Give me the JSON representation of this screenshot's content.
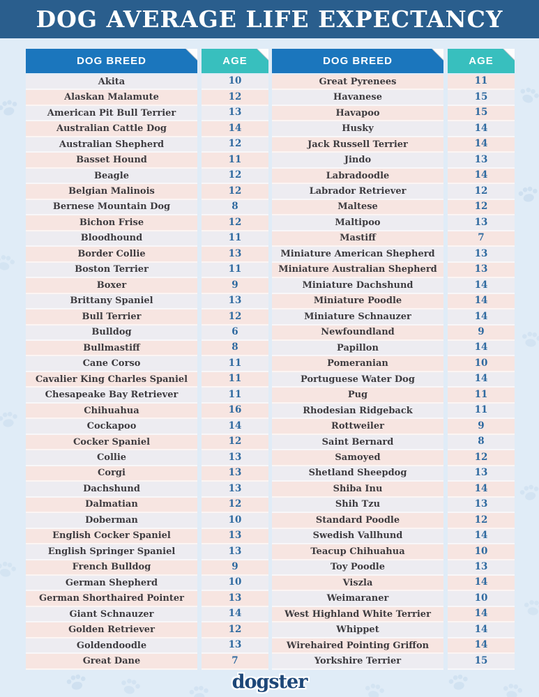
{
  "title": "DOG AVERAGE LIFE EXPECTANCY",
  "logo": "dogster",
  "columns": {
    "breed": "DOG BREED",
    "age": "AGE"
  },
  "colors": {
    "title_bar": "#2A5E8D",
    "breed_header": "#1B76BD",
    "age_header": "#38BFBE",
    "row_gray": "#EDECF1",
    "row_pink": "#F7E5E1",
    "breed_text": "#3E3C40",
    "age_text": "#2F6AA0",
    "background": "#E0ECF7",
    "paw_watermark": "#CBDEEF",
    "logo_text": "#1D4778"
  },
  "icons": {
    "watermark": "paw-print-icon"
  },
  "chart_data": {
    "type": "table",
    "title": "DOG AVERAGE LIFE EXPECTANCY",
    "columns": [
      "DOG BREED",
      "AGE"
    ],
    "tables": [
      {
        "rows": [
          [
            "Akita",
            10
          ],
          [
            "Alaskan Malamute",
            12
          ],
          [
            "American Pit Bull Terrier",
            13
          ],
          [
            "Australian Cattle Dog",
            14
          ],
          [
            "Australian Shepherd",
            12
          ],
          [
            "Basset Hound",
            11
          ],
          [
            "Beagle",
            12
          ],
          [
            "Belgian Malinois",
            12
          ],
          [
            "Bernese Mountain Dog",
            8
          ],
          [
            "Bichon Frise",
            12
          ],
          [
            "Bloodhound",
            11
          ],
          [
            "Border Collie",
            13
          ],
          [
            "Boston Terrier",
            11
          ],
          [
            "Boxer",
            9
          ],
          [
            "Brittany Spaniel",
            13
          ],
          [
            "Bull Terrier",
            12
          ],
          [
            "Bulldog",
            6
          ],
          [
            "Bullmastiff",
            8
          ],
          [
            "Cane Corso",
            11
          ],
          [
            "Cavalier King Charles Spaniel",
            11
          ],
          [
            "Chesapeake Bay Retriever",
            11
          ],
          [
            "Chihuahua",
            16
          ],
          [
            "Cockapoo",
            14
          ],
          [
            "Cocker Spaniel",
            12
          ],
          [
            "Collie",
            13
          ],
          [
            "Corgi",
            13
          ],
          [
            "Dachshund",
            13
          ],
          [
            "Dalmatian",
            12
          ],
          [
            "Doberman",
            10
          ],
          [
            "English Cocker Spaniel",
            13
          ],
          [
            "English Springer Spaniel",
            13
          ],
          [
            "French Bulldog",
            9
          ],
          [
            "German Shepherd",
            10
          ],
          [
            "German Shorthaired Pointer",
            13
          ],
          [
            "Giant Schnauzer",
            14
          ],
          [
            "Golden Retriever",
            12
          ],
          [
            "Goldendoodle",
            13
          ],
          [
            "Great Dane",
            7
          ]
        ]
      },
      {
        "rows": [
          [
            "Great Pyrenees",
            11
          ],
          [
            "Havanese",
            15
          ],
          [
            "Havapoo",
            15
          ],
          [
            "Husky",
            14
          ],
          [
            "Jack Russell Terrier",
            14
          ],
          [
            "Jindo",
            13
          ],
          [
            "Labradoodle",
            14
          ],
          [
            "Labrador Retriever",
            12
          ],
          [
            "Maltese",
            12
          ],
          [
            "Maltipoo",
            13
          ],
          [
            "Mastiff",
            7
          ],
          [
            "Miniature American Shepherd",
            13
          ],
          [
            "Miniature Australian Shepherd",
            13
          ],
          [
            "Miniature Dachshund",
            14
          ],
          [
            "Miniature Poodle",
            14
          ],
          [
            "Miniature Schnauzer",
            14
          ],
          [
            "Newfoundland",
            9
          ],
          [
            "Papillon",
            14
          ],
          [
            "Pomeranian",
            10
          ],
          [
            "Portuguese Water Dog",
            14
          ],
          [
            "Pug",
            11
          ],
          [
            "Rhodesian Ridgeback",
            11
          ],
          [
            "Rottweiler",
            9
          ],
          [
            "Saint Bernard",
            8
          ],
          [
            "Samoyed",
            12
          ],
          [
            "Shetland Sheepdog",
            13
          ],
          [
            "Shiba Inu",
            14
          ],
          [
            "Shih Tzu",
            13
          ],
          [
            "Standard Poodle",
            12
          ],
          [
            "Swedish Vallhund",
            14
          ],
          [
            "Teacup Chihuahua",
            10
          ],
          [
            "Toy Poodle",
            13
          ],
          [
            "Viszla",
            14
          ],
          [
            "Weimaraner",
            10
          ],
          [
            "West Highland White Terrier",
            14
          ],
          [
            "Whippet",
            14
          ],
          [
            "Wirehaired Pointing Griffon",
            14
          ],
          [
            "Yorkshire Terrier",
            15
          ]
        ]
      }
    ]
  }
}
